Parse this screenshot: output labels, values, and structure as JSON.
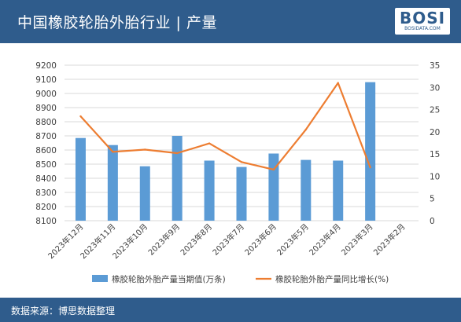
{
  "header": {
    "title": "中国橡胶轮胎外胎行业 | 产量"
  },
  "logo": {
    "text": "BOSI",
    "subtext": "BOSIDATA.COM"
  },
  "footer": {
    "source": "数据来源：博思数据整理"
  },
  "colors": {
    "header_bg": "#2f5c8c",
    "bar": "#5b9bd5",
    "line": "#ed7d31",
    "grid": "#d9d9d9",
    "axis_text": "#404040"
  },
  "chart_data": {
    "type": "bar",
    "categories": [
      "2023年12月",
      "2023年11月",
      "2023年10月",
      "2023年9月",
      "2023年8月",
      "2023年7月",
      "2023年6月",
      "2023年5月",
      "2023年4月",
      "2023年3月",
      "2023年2月"
    ],
    "series": [
      {
        "name": "橡胶轮胎外胎产量当期值(万条)",
        "type": "bar",
        "axis": "left",
        "values": [
          8685,
          8635,
          8485,
          8700,
          8525,
          8480,
          8575,
          8530,
          8525,
          9080,
          null
        ]
      },
      {
        "name": "橡胶轮胎外胎产量同比增长(%)",
        "type": "line",
        "axis": "right",
        "values": [
          23.5,
          15.5,
          16,
          15.2,
          17.4,
          13.2,
          11.5,
          20.5,
          31,
          12,
          null
        ]
      }
    ],
    "y_left": {
      "min": 8100,
      "max": 9200,
      "ticks": [
        8100,
        8200,
        8300,
        8400,
        8500,
        8600,
        8700,
        8800,
        8900,
        9000,
        9100,
        9200
      ]
    },
    "y_right": {
      "min": 0,
      "max": 35,
      "ticks": [
        0,
        5,
        10,
        15,
        20,
        25,
        30,
        35
      ]
    },
    "legend_position": "bottom",
    "grid": true
  }
}
